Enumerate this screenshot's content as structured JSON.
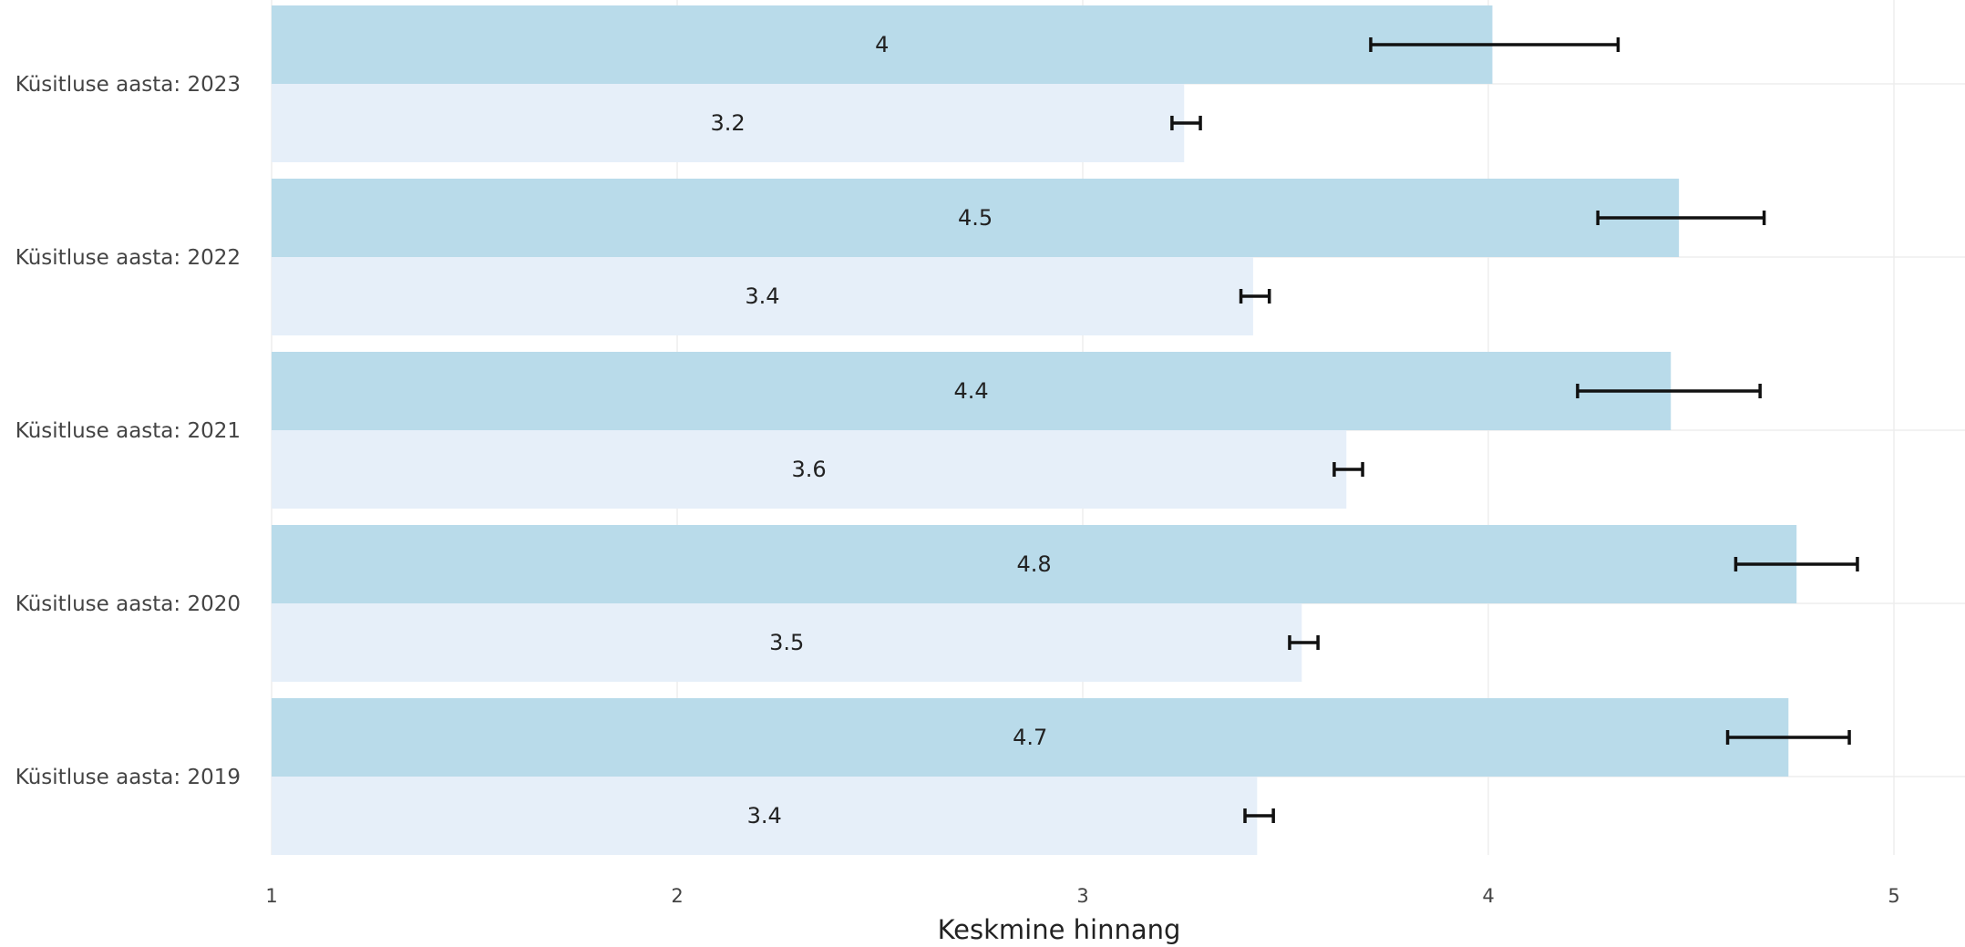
{
  "chart_data": {
    "type": "bar",
    "orientation": "horizontal",
    "xlabel": "Keskmine hinnang",
    "ylabel": "",
    "xlim": [
      1,
      5.17
    ],
    "xticks": [
      1,
      2,
      3,
      4,
      5
    ],
    "grid": true,
    "legend": "none",
    "categories": [
      "Küsitluse aasta: 2023",
      "Küsitluse aasta: 2022",
      "Küsitluse aasta: 2021",
      "Küsitluse aasta: 2020",
      "Küsitluse aasta: 2019"
    ],
    "series": [
      {
        "color": "#b9dbea",
        "values": [
          4.01,
          4.47,
          4.45,
          4.76,
          4.74
        ],
        "labels": [
          "4",
          "4.5",
          "4.4",
          "4.8",
          "4.7"
        ],
        "error_low": [
          3.71,
          4.27,
          4.22,
          4.61,
          4.59
        ],
        "error_high": [
          4.32,
          4.68,
          4.67,
          4.91,
          4.89
        ]
      },
      {
        "color": "#e6eff9",
        "values": [
          3.25,
          3.42,
          3.65,
          3.54,
          3.43
        ],
        "labels": [
          "3.2",
          "3.4",
          "3.6",
          "3.5",
          "3.4"
        ],
        "error_low": [
          3.22,
          3.39,
          3.62,
          3.51,
          3.4
        ],
        "error_high": [
          3.29,
          3.46,
          3.69,
          3.58,
          3.47
        ]
      }
    ]
  }
}
